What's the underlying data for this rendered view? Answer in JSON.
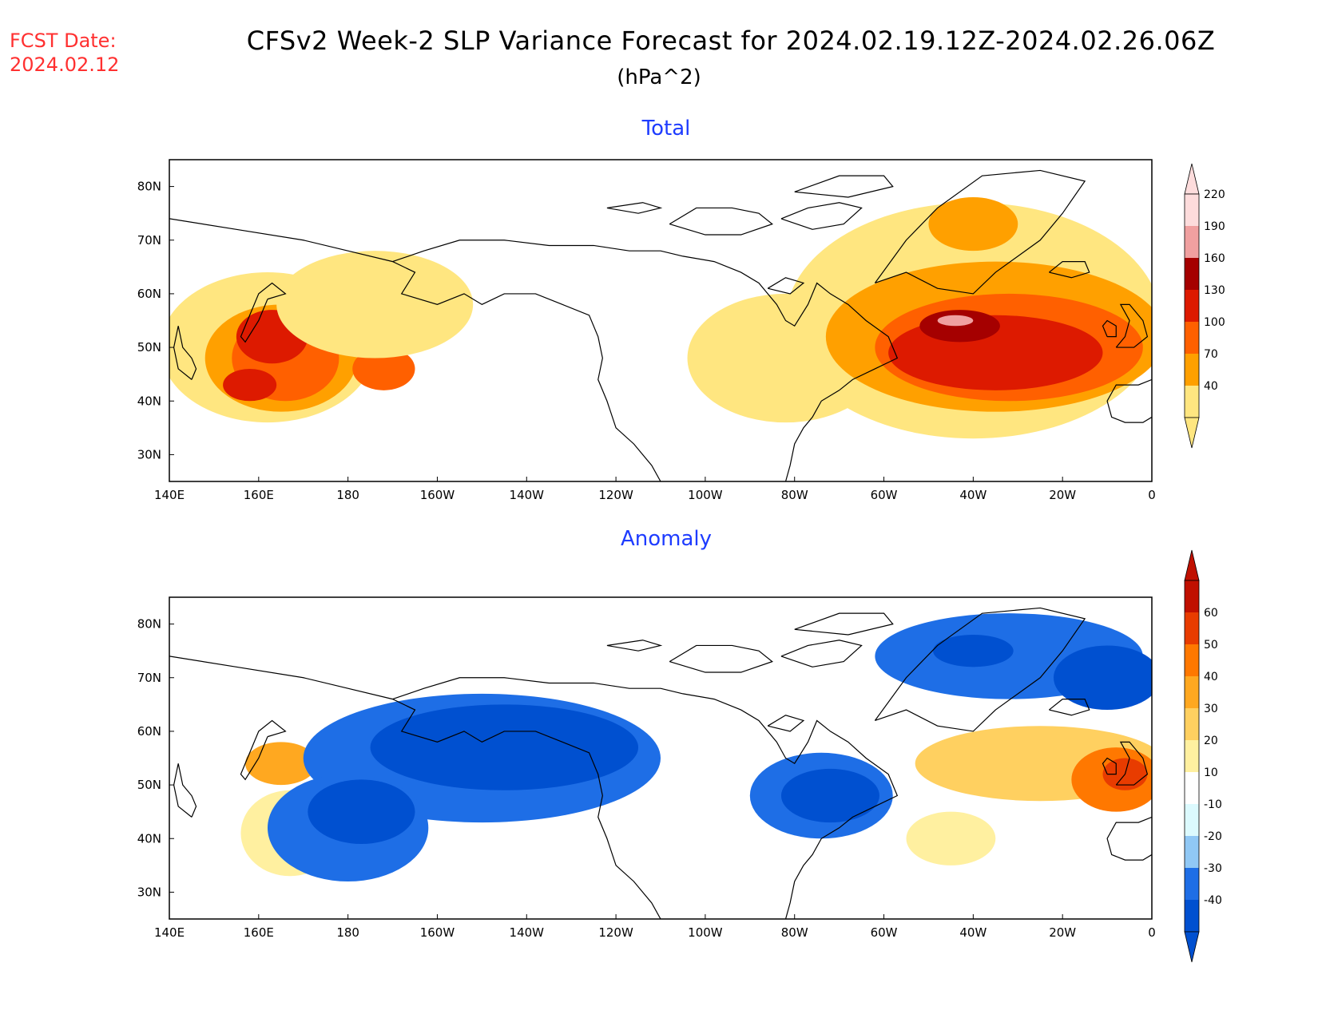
{
  "header": {
    "fcst_label": "FCST Date:",
    "fcst_date": "2024.02.12",
    "title": "CFSv2 Week-2 SLP Variance Forecast for 2024.02.19.12Z-2024.02.26.06Z",
    "units": "(hPa^2)"
  },
  "map": {
    "lon_range": [
      140,
      360
    ],
    "lat_range": [
      25,
      85
    ],
    "x_ticks": [
      "140E",
      "160E",
      "180",
      "160W",
      "140W",
      "120W",
      "100W",
      "80W",
      "60W",
      "40W",
      "20W",
      "0"
    ],
    "y_ticks": [
      "30N",
      "40N",
      "50N",
      "60N",
      "70N",
      "80N"
    ]
  },
  "panels": [
    {
      "id": "total",
      "title": "Total",
      "colorbar": {
        "levels": [
          "40",
          "70",
          "100",
          "130",
          "160",
          "190",
          "220"
        ],
        "colors": [
          "#ffe680",
          "#ffa000",
          "#ff6000",
          "#dd1a00",
          "#a50000",
          "#f0a0a0",
          "#fddcdc"
        ]
      },
      "features": [
        {
          "lon": 162,
          "lat": 50,
          "rx": 24,
          "ry": 14,
          "level": 0
        },
        {
          "lon": 165,
          "lat": 48,
          "rx": 17,
          "ry": 10,
          "level": 1
        },
        {
          "lon": 166,
          "lat": 48,
          "rx": 12,
          "ry": 8,
          "level": 2
        },
        {
          "lon": 163,
          "lat": 52,
          "rx": 8,
          "ry": 5,
          "level": 3
        },
        {
          "lon": 158,
          "lat": 43,
          "rx": 6,
          "ry": 3,
          "level": 3
        },
        {
          "lon": 188,
          "lat": 46,
          "rx": 7,
          "ry": 4,
          "level": 2
        },
        {
          "lon": 186,
          "lat": 58,
          "rx": 22,
          "ry": 10,
          "level": 0
        },
        {
          "lon": 278,
          "lat": 48,
          "rx": 22,
          "ry": 12,
          "level": 0
        },
        {
          "lon": 320,
          "lat": 55,
          "rx": 42,
          "ry": 22,
          "level": 0
        },
        {
          "lon": 325,
          "lat": 52,
          "rx": 38,
          "ry": 14,
          "level": 1
        },
        {
          "lon": 320,
          "lat": 73,
          "rx": 10,
          "ry": 5,
          "level": 1
        },
        {
          "lon": 328,
          "lat": 50,
          "rx": 30,
          "ry": 10,
          "level": 2
        },
        {
          "lon": 325,
          "lat": 49,
          "rx": 24,
          "ry": 7,
          "level": 3
        },
        {
          "lon": 317,
          "lat": 54,
          "rx": 9,
          "ry": 3,
          "level": 4
        },
        {
          "lon": 316,
          "lat": 55,
          "rx": 4,
          "ry": 1,
          "level": 5
        }
      ]
    },
    {
      "id": "anomaly",
      "title": "Anomaly",
      "colorbar": {
        "levels": [
          "-40",
          "-30",
          "-20",
          "-10",
          "10",
          "20",
          "30",
          "40",
          "50",
          "60"
        ],
        "colors": [
          "#0050d0",
          "#1e6ee6",
          "#90c8f5",
          "#dcfafe",
          "#ffffff",
          "#fff0a0",
          "#ffd060",
          "#ffa820",
          "#ff7800",
          "#e83c00",
          "#c01000"
        ]
      },
      "features": [
        {
          "lon": 165,
          "lat": 54,
          "rx": 8,
          "ry": 4,
          "level": 7
        },
        {
          "lon": 167,
          "lat": 41,
          "rx": 11,
          "ry": 8,
          "level": 5
        },
        {
          "lon": 210,
          "lat": 55,
          "rx": 40,
          "ry": 12,
          "level": 1
        },
        {
          "lon": 180,
          "lat": 42,
          "rx": 18,
          "ry": 10,
          "level": 1
        },
        {
          "lon": 215,
          "lat": 57,
          "rx": 30,
          "ry": 8,
          "level": 0
        },
        {
          "lon": 183,
          "lat": 45,
          "rx": 12,
          "ry": 6,
          "level": 0
        },
        {
          "lon": 286,
          "lat": 48,
          "rx": 16,
          "ry": 8,
          "level": 1
        },
        {
          "lon": 288,
          "lat": 48,
          "rx": 11,
          "ry": 5,
          "level": 0
        },
        {
          "lon": 328,
          "lat": 74,
          "rx": 30,
          "ry": 8,
          "level": 1
        },
        {
          "lon": 350,
          "lat": 70,
          "rx": 12,
          "ry": 6,
          "level": 0
        },
        {
          "lon": 320,
          "lat": 75,
          "rx": 9,
          "ry": 3,
          "level": 0
        },
        {
          "lon": 335,
          "lat": 54,
          "rx": 28,
          "ry": 7,
          "level": 6
        },
        {
          "lon": 352,
          "lat": 51,
          "rx": 10,
          "ry": 6,
          "level": 8
        },
        {
          "lon": 354,
          "lat": 52,
          "rx": 5,
          "ry": 3,
          "level": 9
        },
        {
          "lon": 315,
          "lat": 40,
          "rx": 10,
          "ry": 5,
          "level": 5
        }
      ]
    }
  ]
}
